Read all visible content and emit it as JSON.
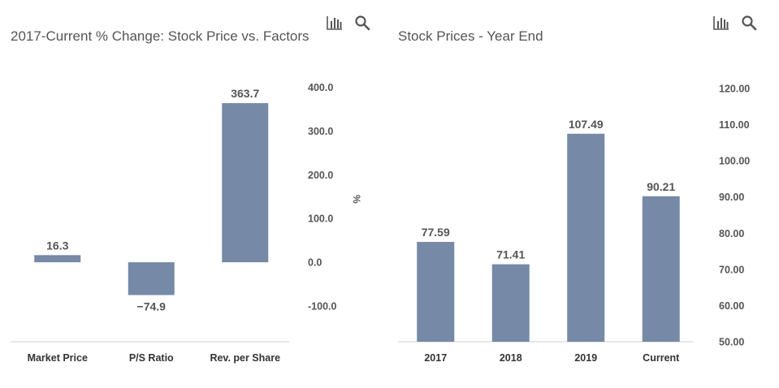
{
  "toolbar": {
    "chart_icon": "bar-chart-icon",
    "search_icon": "search-icon"
  },
  "colors": {
    "bar": "#7689a6",
    "axis": "#d0d0d0",
    "text": "#555555"
  },
  "chart_data": [
    {
      "type": "bar",
      "title": "2017-Current % Change: Stock Price vs. Factors",
      "categories": [
        "Market Price",
        "P/S Ratio",
        "Rev. per Share"
      ],
      "values": [
        16.3,
        -74.9,
        363.7
      ],
      "value_labels": [
        "16.3",
        "−74.9",
        "363.7"
      ],
      "ylabel": "%",
      "ylim": [
        -100,
        400
      ],
      "yticks": [
        -100,
        0,
        100,
        200,
        300,
        400
      ],
      "ytick_labels": [
        "-100.0",
        "0.0",
        "100.0",
        "200.0",
        "300.0",
        "400.0"
      ],
      "y_axis_side": "right",
      "grid": false
    },
    {
      "type": "bar",
      "title": "Stock Prices - Year End",
      "categories": [
        "2017",
        "2018",
        "2019",
        "Current"
      ],
      "values": [
        77.59,
        71.41,
        107.49,
        90.21
      ],
      "value_labels": [
        "77.59",
        "71.41",
        "107.49",
        "90.21"
      ],
      "ylabel": "",
      "ylim": [
        50,
        120
      ],
      "yticks": [
        50,
        60,
        70,
        80,
        90,
        100,
        110,
        120
      ],
      "ytick_labels": [
        "50.00",
        "60.00",
        "70.00",
        "80.00",
        "90.00",
        "100.00",
        "110.00",
        "120.00"
      ],
      "y_axis_side": "right",
      "grid": false
    }
  ]
}
